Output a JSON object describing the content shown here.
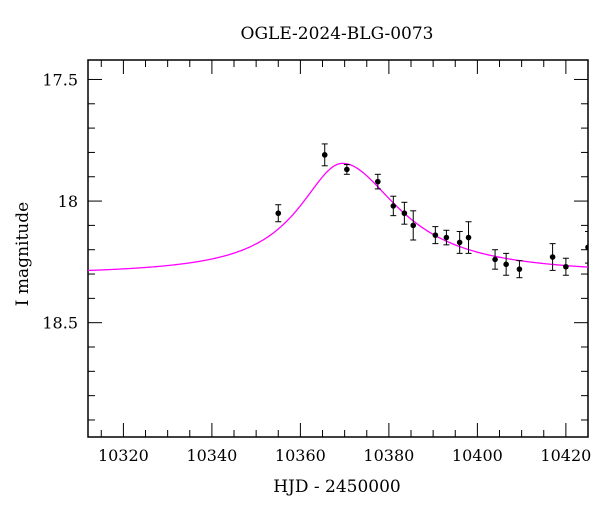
{
  "chart_data": {
    "type": "scatter",
    "title": "OGLE-2024-BLG-0073",
    "xlabel": "HJD - 2450000",
    "ylabel": "I magnitude",
    "xlim": [
      10312,
      10425
    ],
    "ylim": [
      18.97,
      17.42
    ],
    "y_inverted": true,
    "x_ticks": [
      10320,
      10340,
      10360,
      10380,
      10400,
      10420
    ],
    "x_tick_labels": [
      "10320",
      "10340",
      "10360",
      "10380",
      "10400",
      "10420"
    ],
    "y_ticks": [
      17.5,
      18,
      18.5
    ],
    "y_tick_labels": [
      "17.5",
      "18",
      "18.5"
    ],
    "grid": false,
    "points": [
      {
        "x": 10355.0,
        "y": 18.05,
        "err": 0.035
      },
      {
        "x": 10365.5,
        "y": 17.81,
        "err": 0.045
      },
      {
        "x": 10370.5,
        "y": 17.87,
        "err": 0.02
      },
      {
        "x": 10377.5,
        "y": 17.92,
        "err": 0.03
      },
      {
        "x": 10381.0,
        "y": 18.02,
        "err": 0.04
      },
      {
        "x": 10383.5,
        "y": 18.05,
        "err": 0.045
      },
      {
        "x": 10385.5,
        "y": 18.1,
        "err": 0.06
      },
      {
        "x": 10390.5,
        "y": 18.14,
        "err": 0.035
      },
      {
        "x": 10393.0,
        "y": 18.15,
        "err": 0.03
      },
      {
        "x": 10396.0,
        "y": 18.17,
        "err": 0.045
      },
      {
        "x": 10398.0,
        "y": 18.15,
        "err": 0.065
      },
      {
        "x": 10404.0,
        "y": 18.24,
        "err": 0.04
      },
      {
        "x": 10406.5,
        "y": 18.26,
        "err": 0.045
      },
      {
        "x": 10409.5,
        "y": 18.28,
        "err": 0.035
      },
      {
        "x": 10417.0,
        "y": 18.23,
        "err": 0.055
      },
      {
        "x": 10420.0,
        "y": 18.27,
        "err": 0.035
      },
      {
        "x": 10425.0,
        "y": 18.19,
        "err": 0.065
      }
    ],
    "model_curve": {
      "color": "#ff00ff",
      "peak_x": 10369.5,
      "peak_mag": 17.845,
      "baseline_mag": 18.305,
      "width": 14,
      "skew_left": 1.15,
      "skew_right": 0.9
    },
    "point_color": "#000000"
  }
}
